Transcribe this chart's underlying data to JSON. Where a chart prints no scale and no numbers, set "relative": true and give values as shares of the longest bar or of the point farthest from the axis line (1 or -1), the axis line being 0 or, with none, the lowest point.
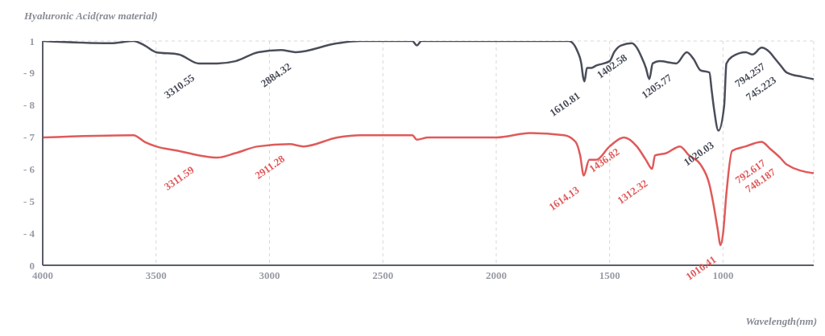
{
  "chart_data": {
    "type": "line",
    "title": "Hyaluronic Acid(raw material)",
    "xlabel": "Wavelength(nm)",
    "xlim": [
      4000,
      600
    ],
    "xticks": [
      4000,
      3500,
      3000,
      2500,
      2000,
      1500,
      1000
    ],
    "relative": true,
    "grid": true,
    "line_style": "solid",
    "marker": "none",
    "series": [
      {
        "color": "#4a4e5a",
        "x": [
          4000,
          3700,
          3600,
          3550,
          3500,
          3400,
          3310.55,
          3230,
          3150,
          3050,
          2950,
          2884.32,
          2700,
          2600,
          2370,
          2350,
          2330,
          2000,
          1680,
          1640,
          1625,
          1617,
          1610.81,
          1600,
          1580,
          1560,
          1500,
          1480,
          1450,
          1402.58,
          1380,
          1360,
          1340,
          1325,
          1310,
          1280,
          1205.77,
          1160,
          1130,
          1100,
          1060,
          1050,
          1040,
          1020.03,
          995,
          985,
          960,
          900,
          870,
          830,
          794.257,
          770,
          745.223,
          720,
          650,
          600
        ],
        "values": [
          1,
          0.99,
          1,
          0.98,
          0.95,
          0.94,
          0.9,
          0.9,
          0.91,
          0.95,
          0.96,
          0.95,
          0.99,
          1,
          1,
          0.98,
          1,
          1,
          1,
          0.95,
          0.9,
          0.84,
          0.82,
          0.88,
          0.88,
          0.89,
          0.91,
          0.95,
          0.98,
          0.99,
          0.97,
          0.93,
          0.88,
          0.83,
          0.9,
          0.91,
          0.9,
          0.95,
          0.92,
          0.87,
          0.86,
          0.78,
          0.7,
          0.6,
          0.71,
          0.9,
          0.93,
          0.95,
          0.94,
          0.97,
          0.95,
          0.92,
          0.89,
          0.86,
          0.84,
          0.83
        ]
      },
      {
        "color": "#e05a5a",
        "x": [
          4000,
          3600,
          3550,
          3500,
          3400,
          3311.59,
          3230,
          3150,
          3050,
          2911.28,
          2850,
          2700,
          2600,
          2370,
          2350,
          2300,
          2000,
          1850,
          1700,
          1650,
          1630,
          1614.13,
          1590,
          1560,
          1500,
          1436.82,
          1380,
          1340,
          1312.32,
          1300,
          1250,
          1190,
          1150,
          1100,
          1060,
          1040,
          1025,
          1010.41,
          1000,
          985,
          960,
          900,
          830,
          792.617,
          748.187,
          720,
          600
        ],
        "values": [
          0.57,
          0.58,
          0.55,
          0.53,
          0.51,
          0.49,
          0.48,
          0.5,
          0.53,
          0.54,
          0.53,
          0.57,
          0.58,
          0.58,
          0.56,
          0.57,
          0.57,
          0.59,
          0.58,
          0.55,
          0.49,
          0.4,
          0.47,
          0.47,
          0.53,
          0.57,
          0.53,
          0.47,
          0.43,
          0.49,
          0.5,
          0.53,
          0.49,
          0.45,
          0.36,
          0.26,
          0.17,
          0.09,
          0.14,
          0.32,
          0.51,
          0.53,
          0.55,
          0.52,
          0.48,
          0.45,
          0.41
        ]
      }
    ],
    "annotations": [
      "1",
      "- 9",
      "- 8",
      "- 7",
      "- 6",
      "- 5",
      "- 4",
      "0",
      {
        "text": "3310.55",
        "x": 3310.55,
        "y": 0.9
      },
      {
        "text": "2884.32",
        "x": 2884.32,
        "y": 0.95
      },
      {
        "text": "1610.81",
        "x": 1610.81,
        "y": 0.82
      },
      {
        "text": "1402.58",
        "x": 1402.58,
        "y": 0.99
      },
      {
        "text": "1205.77",
        "x": 1205.77,
        "y": 0.9
      },
      {
        "text": "1020.03",
        "x": 1020.03,
        "y": 0.6
      },
      {
        "text": "794.257",
        "x": 794.257,
        "y": 0.95
      },
      {
        "text": "745.223",
        "x": 745.223,
        "y": 0.89
      },
      {
        "text": "3311.59",
        "x": 3311.59,
        "y": 0.49
      },
      {
        "text": "2911.28",
        "x": 2911.28,
        "y": 0.54
      },
      {
        "text": "1614.13",
        "x": 1614.13,
        "y": 0.4
      },
      {
        "text": "1436.82",
        "x": 1436.82,
        "y": 0.57
      },
      {
        "text": "1312.32",
        "x": 1312.32,
        "y": 0.43
      },
      {
        "text": "1010.41",
        "x": 1010.41,
        "y": 0.09
      },
      {
        "text": "792.617",
        "x": 792.617,
        "y": 0.52
      },
      {
        "text": "748.187",
        "x": 748.187,
        "y": 0.48
      }
    ]
  }
}
